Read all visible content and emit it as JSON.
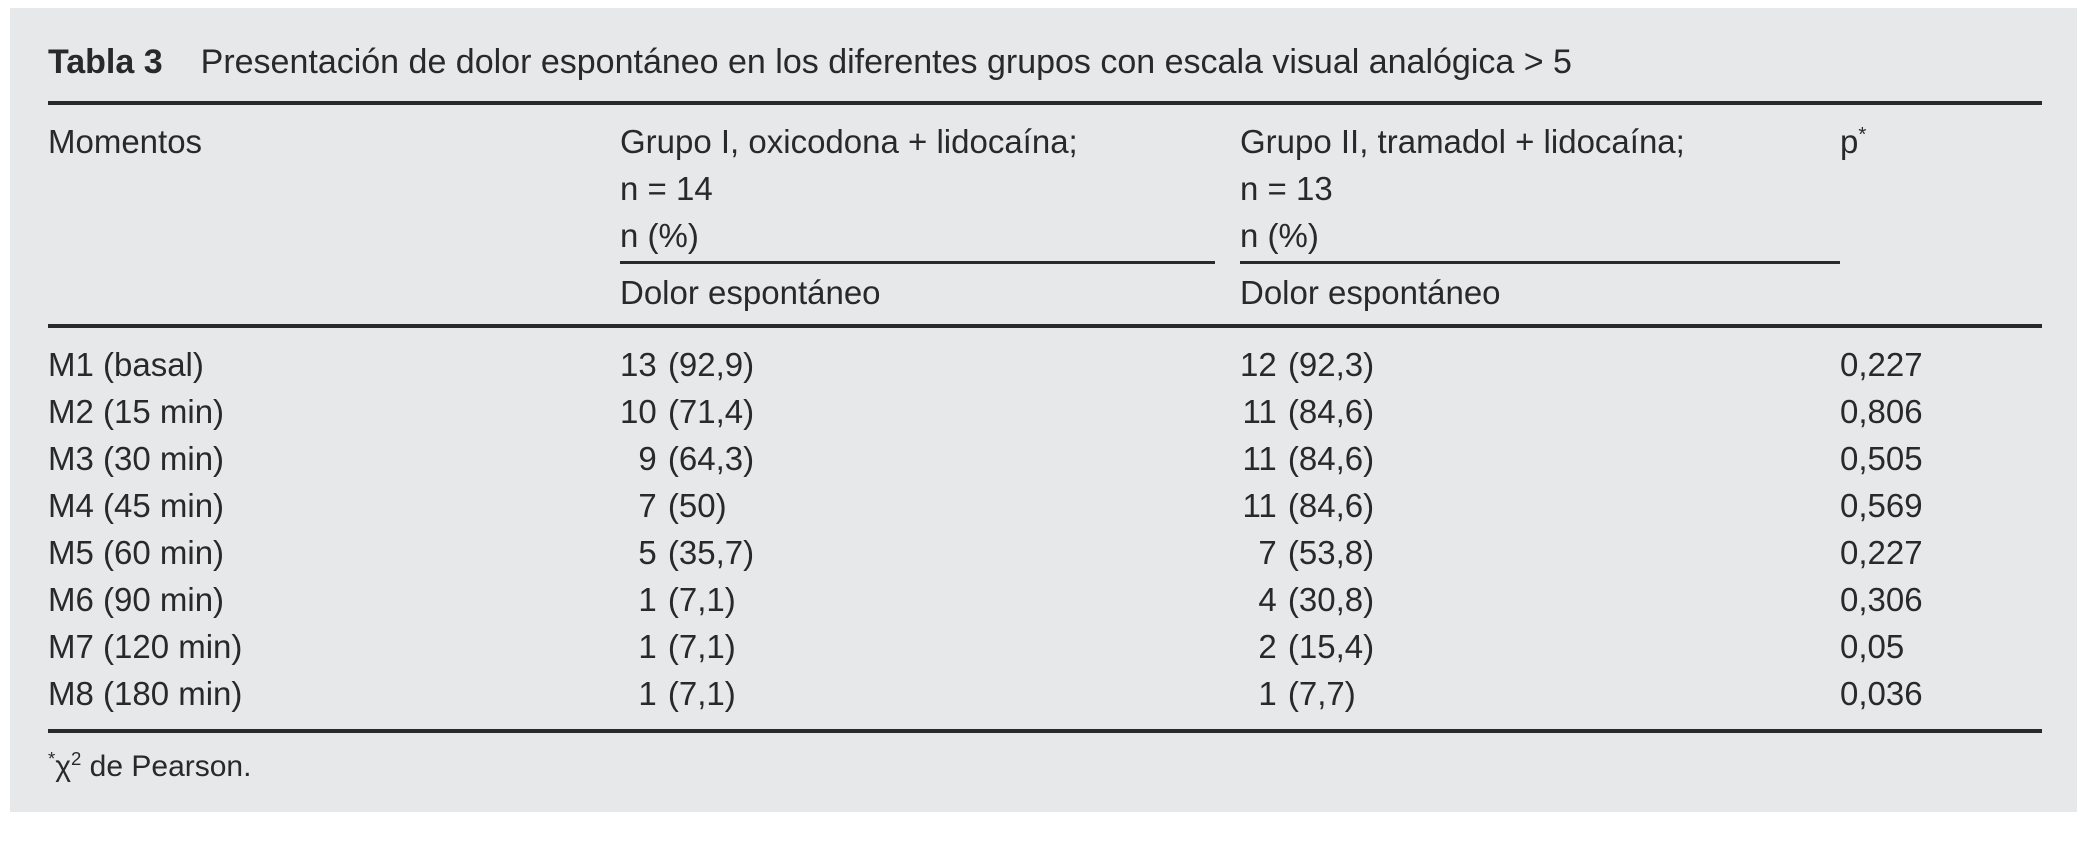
{
  "table": {
    "label": "Tabla 3",
    "title": "Presentación de dolor espontáneo en los diferentes grupos con escala visual analógica > 5",
    "columns": {
      "momentos": "Momentos",
      "grupo1": {
        "line1": "Grupo I, oxicodona + lidocaína;",
        "line2": "n = 14",
        "line3": "n (%)",
        "sub": "Dolor espontáneo"
      },
      "grupo2": {
        "line1": "Grupo II, tramadol + lidocaína;",
        "line2": "n = 13",
        "line3": "n (%)",
        "sub": "Dolor espontáneo"
      },
      "p": {
        "label": "p",
        "sup": "*"
      }
    },
    "rows": [
      {
        "momento": "M1 (basal)",
        "g1_n": "13",
        "g1_pct": "(92,9)",
        "g2_n": "12",
        "g2_pct": "(92,3)",
        "p": "0,227"
      },
      {
        "momento": "M2 (15 min)",
        "g1_n": "10",
        "g1_pct": "(71,4)",
        "g2_n": "11",
        "g2_pct": "(84,6)",
        "p": "0,806"
      },
      {
        "momento": "M3 (30 min)",
        "g1_n": "9",
        "g1_pct": "(64,3)",
        "g2_n": "11",
        "g2_pct": "(84,6)",
        "p": "0,505"
      },
      {
        "momento": "M4 (45 min)",
        "g1_n": "7",
        "g1_pct": "(50)",
        "g2_n": "11",
        "g2_pct": "(84,6)",
        "p": "0,569"
      },
      {
        "momento": "M5 (60 min)",
        "g1_n": "5",
        "g1_pct": "(35,7)",
        "g2_n": "7",
        "g2_pct": "(53,8)",
        "p": "0,227"
      },
      {
        "momento": "M6 (90 min)",
        "g1_n": "1",
        "g1_pct": "(7,1)",
        "g2_n": "4",
        "g2_pct": "(30,8)",
        "p": "0,306"
      },
      {
        "momento": "M7 (120 min)",
        "g1_n": "1",
        "g1_pct": "(7,1)",
        "g2_n": "2",
        "g2_pct": "(15,4)",
        "p": "0,05"
      },
      {
        "momento": "M8 (180 min)",
        "g1_n": "1",
        "g1_pct": "(7,1)",
        "g2_n": "1",
        "g2_pct": "(7,7)",
        "p": "0,036"
      }
    ],
    "footnote": {
      "sup": "*",
      "chi": "χ",
      "exp": "2",
      "text": " de Pearson."
    }
  },
  "colors": {
    "panel_bg": "#e7e8e9",
    "text": "#29292c",
    "rule": "#2a2a2d"
  }
}
